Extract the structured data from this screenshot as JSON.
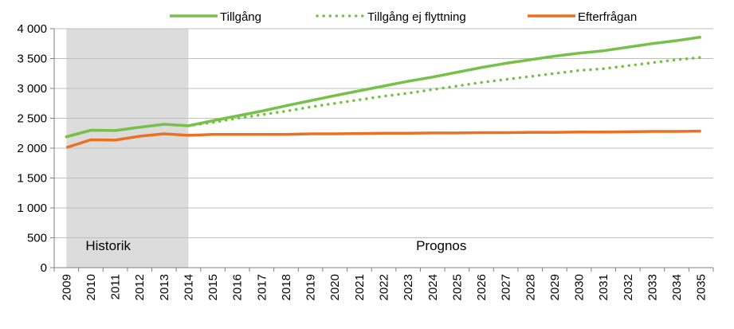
{
  "chart_data": {
    "type": "line",
    "title": "",
    "xlabel": "",
    "ylabel": "",
    "categories": [
      "2009",
      "2010",
      "2011",
      "2012",
      "2013",
      "2014",
      "2015",
      "2016",
      "2017",
      "2018",
      "2019",
      "2020",
      "2021",
      "2022",
      "2023",
      "2024",
      "2025",
      "2026",
      "2027",
      "2028",
      "2029",
      "2030",
      "2031",
      "2032",
      "2033",
      "2034",
      "2035"
    ],
    "ylim": [
      0,
      4000
    ],
    "yticks": [
      "0",
      "500",
      "1 000",
      "1 500",
      "2 000",
      "2 500",
      "3 000",
      "3 500",
      "4 000"
    ],
    "ytick_values": [
      0,
      500,
      1000,
      1500,
      2000,
      2500,
      3000,
      3500,
      4000
    ],
    "grid": true,
    "legend_position": "top",
    "series": [
      {
        "name": "Tillgång",
        "color": "#77c04a",
        "style": "solid",
        "values": [
          2190,
          2300,
          2295,
          2350,
          2400,
          2375,
          2460,
          2540,
          2620,
          2710,
          2795,
          2880,
          2960,
          3040,
          3120,
          3190,
          3270,
          3350,
          3420,
          3480,
          3540,
          3590,
          3630,
          3690,
          3750,
          3800,
          3860
        ]
      },
      {
        "name": "Tillgång ej flyttning",
        "color": "#77c04a",
        "style": "dotted",
        "values": [
          2190,
          2300,
          2295,
          2350,
          2400,
          2375,
          2430,
          2500,
          2560,
          2620,
          2690,
          2750,
          2810,
          2870,
          2920,
          2980,
          3040,
          3100,
          3150,
          3200,
          3250,
          3300,
          3330,
          3380,
          3430,
          3480,
          3520
        ]
      },
      {
        "name": "Efterfrågan",
        "color": "#ec7022",
        "style": "solid",
        "values": [
          2010,
          2140,
          2135,
          2200,
          2240,
          2215,
          2230,
          2230,
          2230,
          2230,
          2240,
          2240,
          2245,
          2250,
          2250,
          2255,
          2255,
          2260,
          2260,
          2265,
          2265,
          2270,
          2270,
          2275,
          2280,
          2280,
          2285
        ]
      }
    ],
    "regions": [
      {
        "label": "Historik",
        "from": "2009",
        "to": "2014",
        "shaded": true,
        "color": "#dcdcdc"
      },
      {
        "label": "Prognos",
        "from": "2014",
        "to": "2035",
        "shaded": false
      }
    ]
  }
}
